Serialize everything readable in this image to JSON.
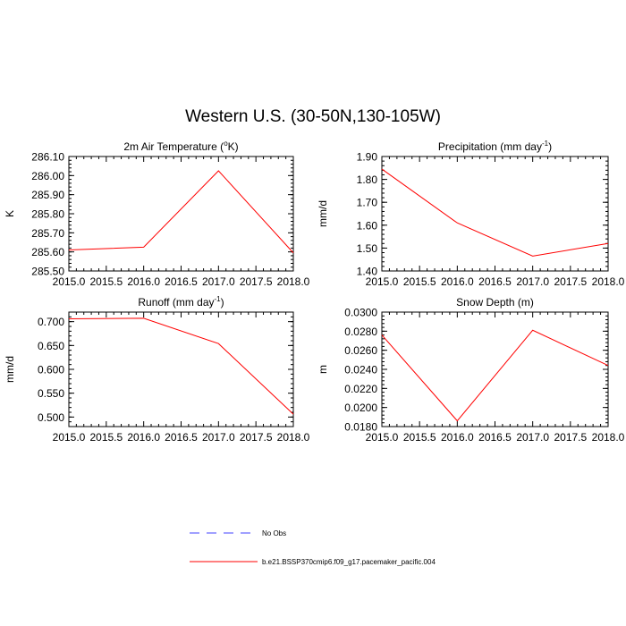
{
  "title": "Western U.S. (30-50N,130-105W)",
  "legend": {
    "entries": [
      {
        "label": "No Obs",
        "color": "#4040ff",
        "dash": true
      },
      {
        "label": "b.e21.BSSP370cmip6.f09_g17.pacemaker_pacific.004",
        "color": "#ff0000",
        "dash": false
      }
    ]
  },
  "chart_data": [
    {
      "type": "line",
      "title_main": "2m Air Temperature (",
      "title_sup": "o",
      "title_tail": "K)",
      "ylabel": "K",
      "xlim": [
        2015.0,
        2018.0
      ],
      "ylim": [
        285.5,
        286.1
      ],
      "x_ticks": [
        "2015.0",
        "2015.5",
        "2016.0",
        "2016.5",
        "2017.0",
        "2017.5",
        "2018.0"
      ],
      "y_ticks": [
        "285.50",
        "285.60",
        "285.70",
        "285.80",
        "285.90",
        "286.00",
        "286.10"
      ],
      "series": [
        {
          "color": "#ff0000",
          "x": [
            2015,
            2016,
            2017,
            2018
          ],
          "y": [
            285.61,
            285.625,
            286.025,
            285.595
          ]
        }
      ]
    },
    {
      "type": "line",
      "title_main": "Precipitation (mm day",
      "title_sup": "-1",
      "title_tail": ")",
      "ylabel": "mm/d",
      "xlim": [
        2015.0,
        2018.0
      ],
      "ylim": [
        1.4,
        1.9
      ],
      "x_ticks": [
        "2015.0",
        "2015.5",
        "2016.0",
        "2016.5",
        "2017.0",
        "2017.5",
        "2018.0"
      ],
      "y_ticks": [
        "1.40",
        "1.50",
        "1.60",
        "1.70",
        "1.80",
        "1.90"
      ],
      "series": [
        {
          "color": "#ff0000",
          "x": [
            2015,
            2016,
            2017,
            2018
          ],
          "y": [
            1.845,
            1.61,
            1.465,
            1.52
          ]
        }
      ]
    },
    {
      "type": "line",
      "title_main": "Runoff (mm day",
      "title_sup": "-1",
      "title_tail": ")",
      "ylabel": "mm/d",
      "xlim": [
        2015.0,
        2018.0
      ],
      "ylim": [
        0.48,
        0.72
      ],
      "x_ticks": [
        "2015.0",
        "2015.5",
        "2016.0",
        "2016.5",
        "2017.0",
        "2017.5",
        "2018.0"
      ],
      "y_ticks": [
        "0.500",
        "0.550",
        "0.600",
        "0.650",
        "0.700"
      ],
      "y_tick_values": [
        0.5,
        0.55,
        0.6,
        0.65,
        0.7
      ],
      "series": [
        {
          "color": "#ff0000",
          "x": [
            2015,
            2016,
            2017,
            2018
          ],
          "y": [
            0.706,
            0.707,
            0.654,
            0.506
          ]
        }
      ]
    },
    {
      "type": "line",
      "title_main": "Snow Depth (m)",
      "title_sup": "",
      "title_tail": "",
      "ylabel": "m",
      "xlim": [
        2015.0,
        2018.0
      ],
      "ylim": [
        0.018,
        0.03
      ],
      "x_ticks": [
        "2015.0",
        "2015.5",
        "2016.0",
        "2016.5",
        "2017.0",
        "2017.5",
        "2018.0"
      ],
      "y_ticks": [
        "0.0180",
        "0.0200",
        "0.0220",
        "0.0240",
        "0.0260",
        "0.0280",
        "0.0300"
      ],
      "series": [
        {
          "color": "#ff0000",
          "x": [
            2015,
            2016,
            2017,
            2018
          ],
          "y": [
            0.0276,
            0.0186,
            0.0281,
            0.0244
          ]
        }
      ]
    }
  ]
}
